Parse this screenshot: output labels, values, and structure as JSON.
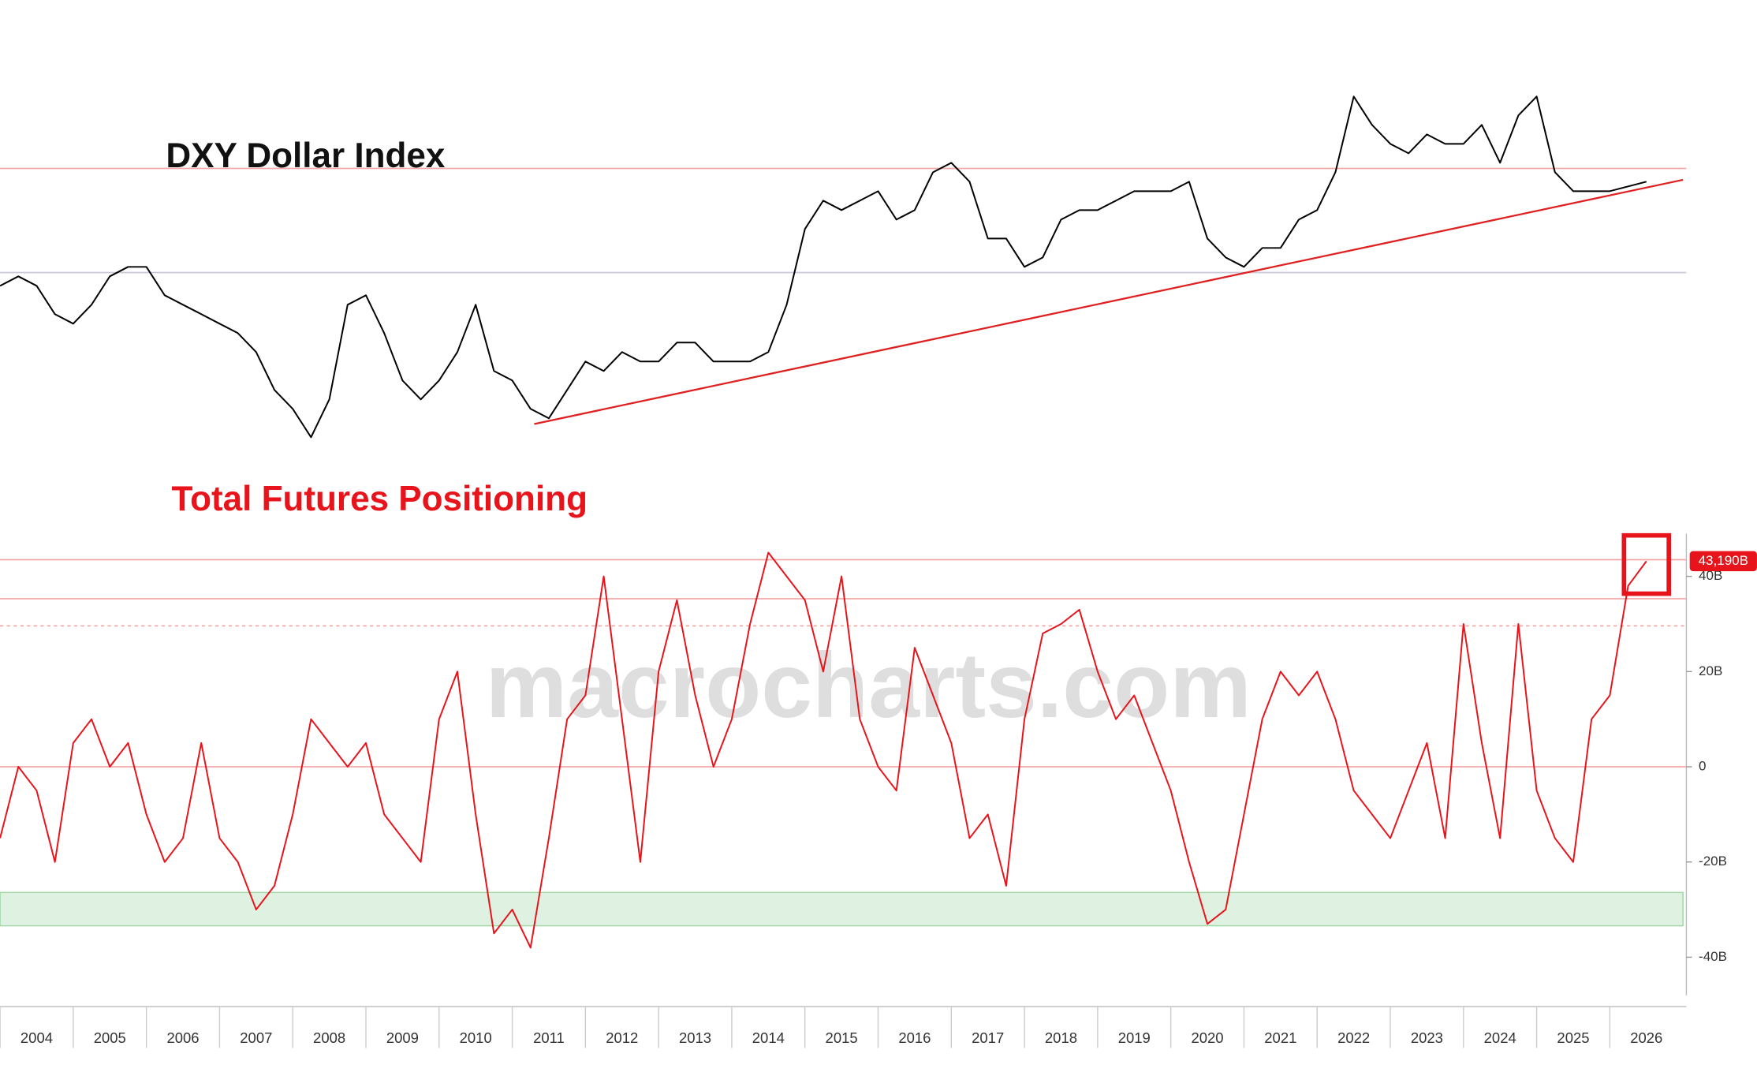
{
  "chart_data": [
    {
      "type": "line",
      "title": "DXY Dollar Index",
      "x": [
        2004,
        2004.25,
        2004.5,
        2004.75,
        2005,
        2005.25,
        2005.5,
        2005.75,
        2006,
        2006.25,
        2006.5,
        2006.75,
        2007,
        2007.25,
        2007.5,
        2007.75,
        2008,
        2008.25,
        2008.5,
        2008.75,
        2009,
        2009.25,
        2009.5,
        2009.75,
        2010,
        2010.25,
        2010.5,
        2010.75,
        2011,
        2011.25,
        2011.5,
        2011.75,
        2012,
        2012.25,
        2012.5,
        2012.75,
        2013,
        2013.25,
        2013.5,
        2013.75,
        2014,
        2014.25,
        2014.5,
        2014.75,
        2015,
        2015.25,
        2015.5,
        2015.75,
        2016,
        2016.25,
        2016.5,
        2016.75,
        2017,
        2017.25,
        2017.5,
        2017.75,
        2018,
        2018.25,
        2018.5,
        2018.75,
        2019,
        2019.25,
        2019.5,
        2019.75,
        2020,
        2020.25,
        2020.5,
        2020.75,
        2021,
        2021.25,
        2021.5,
        2021.75,
        2022,
        2022.25,
        2022.5,
        2022.75,
        2023,
        2023.25,
        2023.5,
        2023.75,
        2024,
        2024.25,
        2024.5,
        2024.75,
        2025,
        2025.25,
        2025.5,
        2025.75,
        2026,
        2026.25,
        2026.5
      ],
      "series": [
        {
          "name": "DXY Dollar Index",
          "color": "#000000",
          "values": [
            88,
            89,
            88,
            85,
            84,
            86,
            89,
            90,
            90,
            87,
            86,
            85,
            84,
            83,
            81,
            77,
            75,
            72,
            76,
            86,
            87,
            83,
            78,
            76,
            78,
            81,
            86,
            79,
            78,
            75,
            74,
            77,
            80,
            79,
            81,
            80,
            80,
            82,
            82,
            80,
            80,
            80,
            81,
            86,
            94,
            97,
            96,
            97,
            98,
            95,
            96,
            100,
            101,
            99,
            93,
            93,
            90,
            91,
            95,
            96,
            96,
            97,
            98,
            98,
            98,
            99,
            93,
            91,
            90,
            92,
            92,
            95,
            96,
            100,
            108,
            105,
            103,
            102,
            104,
            103,
            103,
            105,
            101,
            106,
            108,
            100,
            98,
            98,
            98,
            98.5,
            99
          ]
        }
      ],
      "xlim": [
        2004,
        2027
      ],
      "ylim": [
        70,
        115
      ],
      "reference_lines": [
        {
          "value": 100.4,
          "color": "#f4a8a8"
        },
        {
          "value": 89.4,
          "color": "#c8c8d8"
        }
      ],
      "trend_line": {
        "x": [
          2011.3,
          2027
        ],
        "values": [
          73.4,
          99.2
        ],
        "color": "#e02020"
      }
    },
    {
      "type": "line",
      "title": "Total Futures Positioning",
      "watermark": "macrocharts.com",
      "x": [
        2004,
        2004.25,
        2004.5,
        2004.75,
        2005,
        2005.25,
        2005.5,
        2005.75,
        2006,
        2006.25,
        2006.5,
        2006.75,
        2007,
        2007.25,
        2007.5,
        2007.75,
        2008,
        2008.25,
        2008.5,
        2008.75,
        2009,
        2009.25,
        2009.5,
        2009.75,
        2010,
        2010.25,
        2010.5,
        2010.75,
        2011,
        2011.25,
        2011.5,
        2011.75,
        2012,
        2012.25,
        2012.5,
        2012.75,
        2013,
        2013.25,
        2013.5,
        2013.75,
        2014,
        2014.25,
        2014.5,
        2014.75,
        2015,
        2015.25,
        2015.5,
        2015.75,
        2016,
        2016.25,
        2016.5,
        2016.75,
        2017,
        2017.25,
        2017.5,
        2017.75,
        2018,
        2018.25,
        2018.5,
        2018.75,
        2019,
        2019.25,
        2019.5,
        2019.75,
        2020,
        2020.25,
        2020.5,
        2020.75,
        2021,
        2021.25,
        2021.5,
        2021.75,
        2022,
        2022.25,
        2022.5,
        2022.75,
        2023,
        2023.25,
        2023.5,
        2023.75,
        2024,
        2024.25,
        2024.5,
        2024.75,
        2025,
        2025.25,
        2025.5,
        2025.75,
        2026,
        2026.25,
        2026.5
      ],
      "series": [
        {
          "name": "Total Futures Positioning",
          "color": "#e8141b",
          "values": [
            -15,
            0,
            -5,
            -20,
            5,
            10,
            0,
            5,
            -10,
            -20,
            -15,
            5,
            -15,
            -20,
            -30,
            -25,
            -10,
            10,
            5,
            0,
            5,
            -10,
            -15,
            -20,
            10,
            20,
            -10,
            -35,
            -30,
            -38,
            -15,
            10,
            15,
            40,
            10,
            -20,
            20,
            35,
            15,
            0,
            10,
            30,
            45,
            40,
            35,
            20,
            40,
            10,
            0,
            -5,
            25,
            15,
            5,
            -15,
            -10,
            -25,
            10,
            28,
            30,
            33,
            20,
            10,
            15,
            5,
            -5,
            -20,
            -33,
            -30,
            -10,
            10,
            20,
            15,
            20,
            10,
            -5,
            -10,
            -15,
            -5,
            5,
            -15,
            30,
            5,
            -15,
            30,
            -5,
            -15,
            -20,
            10,
            15,
            38,
            43.19
          ]
        }
      ],
      "current_value": {
        "value": 43.19,
        "label": "43,190B"
      },
      "xlim": [
        2004,
        2027
      ],
      "xticks": [
        2004,
        2005,
        2006,
        2007,
        2008,
        2009,
        2010,
        2011,
        2012,
        2013,
        2014,
        2015,
        2016,
        2017,
        2018,
        2019,
        2020,
        2021,
        2022,
        2023,
        2024,
        2025,
        2026
      ],
      "ylim": [
        -48,
        49
      ],
      "yticks": [
        {
          "value": -40,
          "label": "-40B"
        },
        {
          "value": -20,
          "label": "-20B"
        },
        0,
        {
          "value": 20,
          "label": "20B"
        },
        {
          "value": 40,
          "label": "40B"
        }
      ],
      "reference_lines": [
        {
          "value": 43.5,
          "color": "#f4a8a8"
        },
        {
          "value": 35.3,
          "color": "#f4a8a8"
        },
        {
          "value": 29.6,
          "color": "#f4a8a8",
          "dashed": true
        },
        {
          "value": 0,
          "color": "#f4a8a8"
        }
      ],
      "band": {
        "from": -33.4,
        "to": -26.4,
        "color": "#dff2e1"
      }
    }
  ]
}
